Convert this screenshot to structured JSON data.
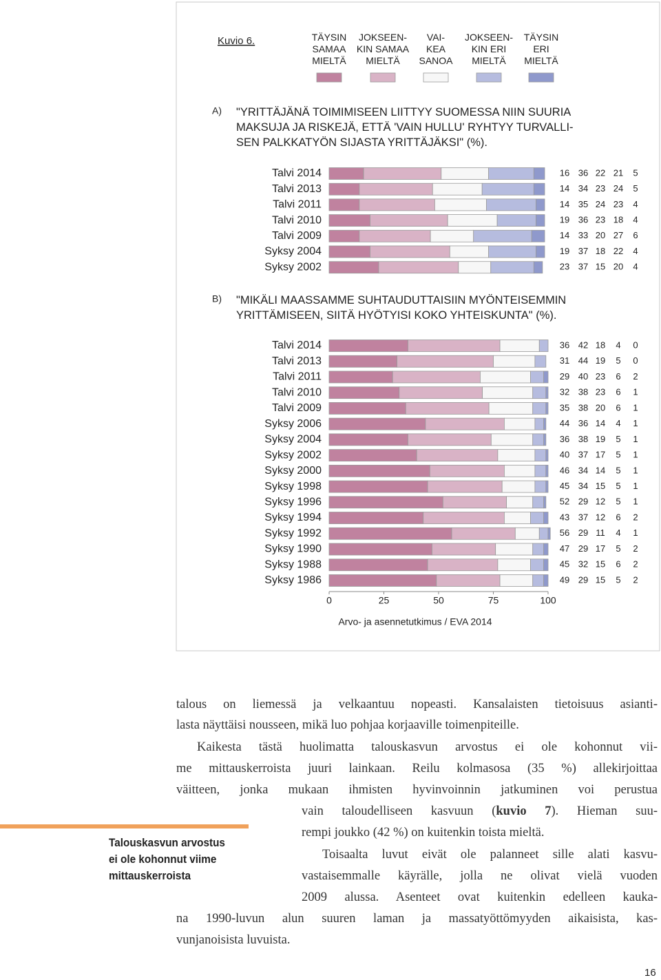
{
  "figure": {
    "label": "Kuvio 6.",
    "source": "Arvo- ja asennetutkimus / EVA 2014"
  },
  "chart_data": [
    {
      "type": "stacked-bar",
      "label": "A)",
      "title": "\"YRITTÄJÄNÄ TOIMIMISEEN LIITTYY SUOMESSA NIIN SUURIA\nMAKSUJA JA RISKEJÄ, ETTÄ 'VAIN HULLU' RYHTYY TURVALLI-\nSEN PALKKATYÖN SIJASTA YRITTÄJÄKSI\" (%).",
      "categories": [
        "Talvi 2014",
        "Talvi 2013",
        "Talvi 2011",
        "Talvi 2010",
        "Talvi 2009",
        "Syksy 2004",
        "Syksy 2002"
      ],
      "xlim": [
        0,
        100
      ],
      "series": [
        {
          "name": "TÄYSIN\nSAMAA\nMIELTÄ",
          "color": "#c0829f",
          "values": [
            16,
            14,
            14,
            19,
            14,
            19,
            23
          ]
        },
        {
          "name": "JOKSEEN-\nKIN SAMAA\nMIELTÄ",
          "color": "#d9b3c6",
          "values": [
            36,
            34,
            35,
            36,
            33,
            37,
            37
          ]
        },
        {
          "name": "VAI-\nKEA\nSANOA",
          "color": "#f7f7f7",
          "values": [
            22,
            23,
            24,
            23,
            20,
            18,
            15
          ]
        },
        {
          "name": "JOKSEEN-\nKIN ERI\nMIELTÄ",
          "color": "#b6bcdf",
          "values": [
            21,
            24,
            23,
            18,
            27,
            22,
            20
          ]
        },
        {
          "name": "TÄYSIN\nERI\nMIELTÄ",
          "color": "#8f99cc",
          "values": [
            5,
            5,
            4,
            4,
            6,
            4,
            4
          ]
        }
      ]
    },
    {
      "type": "stacked-bar",
      "label": "B)",
      "title": "\"MIKÄLI MAASSAMME SUHTAUDUTTAISIIN MYÖNTEISEMMIN\nYRITTÄMISEEN, SIITÄ HYÖTYISI KOKO YHTEISKUNTA\" (%).",
      "categories": [
        "Talvi 2014",
        "Talvi 2013",
        "Talvi 2011",
        "Talvi 2010",
        "Talvi 2009",
        "Syksy 2006",
        "Syksy 2004",
        "Syksy 2002",
        "Syksy 2000",
        "Syksy 1998",
        "Syksy 1996",
        "Syksy 1994",
        "Syksy 1992",
        "Syksy 1990",
        "Syksy 1988",
        "Syksy 1986"
      ],
      "xlim": [
        0,
        100
      ],
      "xticks": [
        0,
        25,
        50,
        75,
        100
      ],
      "series": [
        {
          "color": "#c0829f",
          "values": [
            36,
            31,
            29,
            32,
            35,
            44,
            36,
            40,
            46,
            45,
            52,
            43,
            56,
            47,
            45,
            49
          ]
        },
        {
          "color": "#d9b3c6",
          "values": [
            42,
            44,
            40,
            38,
            38,
            36,
            38,
            37,
            34,
            34,
            29,
            37,
            29,
            29,
            32,
            29
          ]
        },
        {
          "color": "#f7f7f7",
          "values": [
            18,
            19,
            23,
            23,
            20,
            14,
            19,
            17,
            14,
            15,
            12,
            12,
            11,
            17,
            15,
            15
          ]
        },
        {
          "color": "#b6bcdf",
          "values": [
            4,
            5,
            6,
            6,
            6,
            4,
            5,
            5,
            5,
            5,
            5,
            6,
            4,
            5,
            6,
            5
          ]
        },
        {
          "color": "#8f99cc",
          "values": [
            0,
            0,
            2,
            1,
            1,
            1,
            1,
            1,
            1,
            1,
            1,
            2,
            1,
            2,
            2,
            2
          ]
        }
      ]
    }
  ],
  "body": {
    "lines": [
      "talous on liemessä ja velkaantuu nopeasti. Kansalaisten tietoisuus asianti-",
      "lasta näyttäisi nousseen, mikä luo pohjaa korjaaville toimenpiteille.",
      "Kaikesta tästä huolimatta talouskasvun arvostus ei ole kohonnut vii-",
      "me mittauskerroista juuri lainkaan. Reilu kolmasosa (35 %) allekirjoittaa",
      "väitteen, jonka mukaan ihmisten hyvinvoinnin jatkuminen voi perustua",
      [
        "vain taloudelliseen kasvuun (",
        "kuvio 7",
        "). Hieman suu-"
      ],
      "rempi joukko (42 %) on kuitenkin toista mieltä.",
      "Toisaalta luvut eivät ole palanneet sille alati kasvu-",
      "vastaisemmalle käyrälle, jolla ne olivat vielä vuoden",
      "2009 alussa. Asenteet ovat kuitenkin edelleen kauka-",
      "na 1990-luvun alun suuren laman ja massatyöttömyyden aikaisista, kas-",
      "vunjanoisista luvuista."
    ]
  },
  "sidebar": "Talouskasvun arvostus\nei ole kohonnut viime\nmittauskerroista",
  "page_number": "16"
}
